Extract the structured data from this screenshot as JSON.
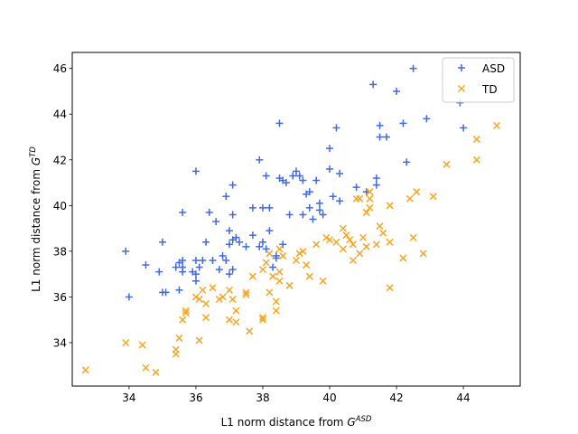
{
  "chart_data": {
    "type": "scatter",
    "title": "",
    "xlabel": {
      "base": "L1 norm distance from ",
      "symbol": "G",
      "sup": "ASD"
    },
    "ylabel": {
      "base": "L1 norm distance from ",
      "symbol": "G",
      "sup": "TD"
    },
    "xlim": [
      32.3,
      45.7
    ],
    "ylim": [
      32.1,
      46.7
    ],
    "xticks": [
      34,
      36,
      38,
      40,
      42,
      44
    ],
    "yticks": [
      34,
      36,
      38,
      40,
      42,
      44,
      46
    ],
    "grid": false,
    "legend_position": "top-right",
    "series": [
      {
        "name": "ASD",
        "marker": "plus",
        "color": "#4169e1",
        "points": [
          [
            33.9,
            38.0
          ],
          [
            34.0,
            36.0
          ],
          [
            34.5,
            37.4
          ],
          [
            34.9,
            37.1
          ],
          [
            35.0,
            38.4
          ],
          [
            35.1,
            36.2
          ],
          [
            35.0,
            36.2
          ],
          [
            35.4,
            37.3
          ],
          [
            35.5,
            37.5
          ],
          [
            35.5,
            36.3
          ],
          [
            35.6,
            37.1
          ],
          [
            35.6,
            37.3
          ],
          [
            35.6,
            39.7
          ],
          [
            35.6,
            37.6
          ],
          [
            35.9,
            37.1
          ],
          [
            36.0,
            37.6
          ],
          [
            36.0,
            41.5
          ],
          [
            36.0,
            37.0
          ],
          [
            36.0,
            36.7
          ],
          [
            36.1,
            37.3
          ],
          [
            36.2,
            37.6
          ],
          [
            36.3,
            38.4
          ],
          [
            36.4,
            39.7
          ],
          [
            36.5,
            37.6
          ],
          [
            36.6,
            39.3
          ],
          [
            36.7,
            37.2
          ],
          [
            36.8,
            37.8
          ],
          [
            36.9,
            40.4
          ],
          [
            36.9,
            37.6
          ],
          [
            37.0,
            38.3
          ],
          [
            37.0,
            38.9
          ],
          [
            37.0,
            37.0
          ],
          [
            37.1,
            37.2
          ],
          [
            37.1,
            38.5
          ],
          [
            37.1,
            39.6
          ],
          [
            37.1,
            40.9
          ],
          [
            37.2,
            38.6
          ],
          [
            37.3,
            38.4
          ],
          [
            37.5,
            38.2
          ],
          [
            37.7,
            38.7
          ],
          [
            37.7,
            39.9
          ],
          [
            37.9,
            42.0
          ],
          [
            37.9,
            38.2
          ],
          [
            38.0,
            39.9
          ],
          [
            38.0,
            38.4
          ],
          [
            38.1,
            38.1
          ],
          [
            38.1,
            41.3
          ],
          [
            38.2,
            38.9
          ],
          [
            38.2,
            39.9
          ],
          [
            38.3,
            37.3
          ],
          [
            38.4,
            37.8
          ],
          [
            38.4,
            37.7
          ],
          [
            38.5,
            41.2
          ],
          [
            38.5,
            43.6
          ],
          [
            38.6,
            41.1
          ],
          [
            38.6,
            38.3
          ],
          [
            38.7,
            41.0
          ],
          [
            38.8,
            39.6
          ],
          [
            38.9,
            41.3
          ],
          [
            39.0,
            41.5
          ],
          [
            39.1,
            41.3
          ],
          [
            39.2,
            41.1
          ],
          [
            39.2,
            39.6
          ],
          [
            39.3,
            40.5
          ],
          [
            39.4,
            39.9
          ],
          [
            39.4,
            40.6
          ],
          [
            39.5,
            39.4
          ],
          [
            39.6,
            41.1
          ],
          [
            39.7,
            40.1
          ],
          [
            39.7,
            39.8
          ],
          [
            39.8,
            39.6
          ],
          [
            40.0,
            42.5
          ],
          [
            40.0,
            41.6
          ],
          [
            40.1,
            40.4
          ],
          [
            40.2,
            43.4
          ],
          [
            40.3,
            40.2
          ],
          [
            40.3,
            41.4
          ],
          [
            40.8,
            40.8
          ],
          [
            41.1,
            40.6
          ],
          [
            41.3,
            45.3
          ],
          [
            41.4,
            40.9
          ],
          [
            41.4,
            41.2
          ],
          [
            41.5,
            43.0
          ],
          [
            41.5,
            43.5
          ],
          [
            41.7,
            43.0
          ],
          [
            42.0,
            45.0
          ],
          [
            42.2,
            43.6
          ],
          [
            42.3,
            41.9
          ],
          [
            42.5,
            46.0
          ],
          [
            42.9,
            43.8
          ],
          [
            43.9,
            44.5
          ],
          [
            44.0,
            43.4
          ]
        ]
      },
      {
        "name": "TD",
        "marker": "x",
        "color": "#f5a623",
        "points": [
          [
            32.7,
            32.8
          ],
          [
            33.9,
            34.0
          ],
          [
            34.4,
            33.9
          ],
          [
            34.5,
            32.9
          ],
          [
            34.8,
            32.7
          ],
          [
            35.4,
            33.7
          ],
          [
            35.4,
            33.5
          ],
          [
            35.5,
            34.2
          ],
          [
            35.6,
            35.0
          ],
          [
            35.7,
            35.4
          ],
          [
            35.7,
            35.3
          ],
          [
            36.0,
            36.0
          ],
          [
            36.1,
            34.1
          ],
          [
            36.1,
            35.9
          ],
          [
            36.2,
            36.3
          ],
          [
            36.3,
            35.7
          ],
          [
            36.3,
            35.1
          ],
          [
            36.5,
            36.4
          ],
          [
            36.7,
            35.9
          ],
          [
            36.8,
            36.0
          ],
          [
            37.0,
            36.3
          ],
          [
            37.0,
            35.0
          ],
          [
            37.1,
            35.9
          ],
          [
            37.2,
            34.9
          ],
          [
            37.2,
            35.4
          ],
          [
            37.5,
            36.2
          ],
          [
            37.5,
            36.1
          ],
          [
            37.6,
            34.5
          ],
          [
            37.7,
            36.9
          ],
          [
            38.0,
            35.0
          ],
          [
            38.0,
            37.2
          ],
          [
            38.0,
            35.1
          ],
          [
            38.1,
            37.5
          ],
          [
            38.2,
            36.2
          ],
          [
            38.2,
            37.9
          ],
          [
            38.3,
            36.9
          ],
          [
            38.4,
            35.8
          ],
          [
            38.4,
            35.4
          ],
          [
            38.5,
            36.7
          ],
          [
            38.5,
            37.1
          ],
          [
            38.5,
            38.1
          ],
          [
            38.6,
            37.8
          ],
          [
            38.8,
            36.5
          ],
          [
            39.0,
            37.6
          ],
          [
            39.1,
            37.9
          ],
          [
            39.2,
            38.0
          ],
          [
            39.3,
            37.4
          ],
          [
            39.4,
            36.9
          ],
          [
            39.6,
            38.3
          ],
          [
            39.8,
            36.7
          ],
          [
            39.9,
            38.6
          ],
          [
            40.0,
            38.5
          ],
          [
            40.2,
            38.4
          ],
          [
            40.4,
            38.1
          ],
          [
            40.4,
            39.0
          ],
          [
            40.5,
            38.7
          ],
          [
            40.6,
            38.5
          ],
          [
            40.7,
            38.3
          ],
          [
            40.7,
            37.6
          ],
          [
            40.8,
            40.3
          ],
          [
            40.9,
            40.3
          ],
          [
            40.9,
            37.9
          ],
          [
            41.0,
            38.6
          ],
          [
            41.1,
            38.2
          ],
          [
            41.1,
            39.7
          ],
          [
            41.2,
            40.6
          ],
          [
            41.2,
            40.3
          ],
          [
            41.2,
            39.9
          ],
          [
            41.4,
            38.3
          ],
          [
            41.5,
            39.1
          ],
          [
            41.6,
            38.8
          ],
          [
            41.8,
            36.4
          ],
          [
            41.8,
            38.4
          ],
          [
            41.8,
            40.0
          ],
          [
            42.2,
            37.7
          ],
          [
            42.4,
            40.3
          ],
          [
            42.5,
            38.6
          ],
          [
            42.6,
            40.6
          ],
          [
            42.8,
            37.9
          ],
          [
            43.1,
            40.4
          ],
          [
            43.5,
            41.8
          ],
          [
            44.4,
            42.9
          ],
          [
            44.4,
            42.0
          ],
          [
            45.0,
            43.5
          ]
        ]
      }
    ]
  }
}
